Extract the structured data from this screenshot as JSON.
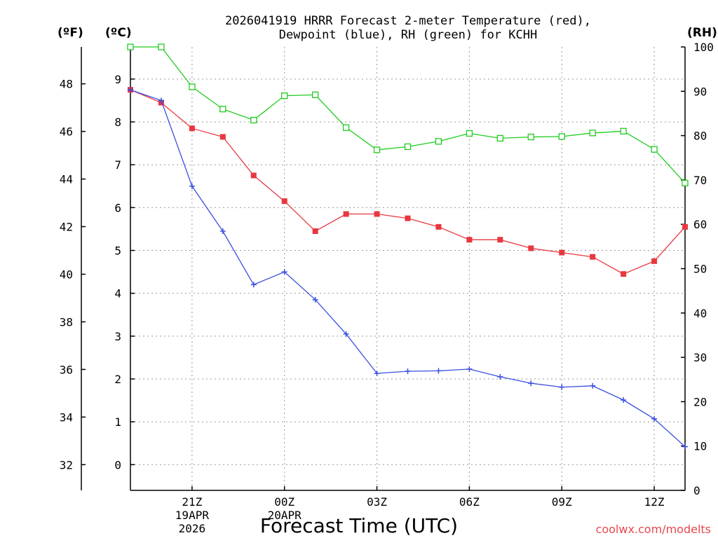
{
  "chart_data": {
    "type": "line",
    "title_line1": "2026041919 HRRR Forecast 2-meter Temperature (red),",
    "title_line2": "Dewpoint (blue), RH (green) for KCHH",
    "xlabel": "Forecast Time (UTC)",
    "credit": "coolwx.com/modelts",
    "units": {
      "fahrenheit": "(ºF)",
      "celsius": "(ºC)",
      "rh": "(RH)"
    },
    "x_hours": [
      0,
      1,
      2,
      3,
      4,
      5,
      6,
      7,
      8,
      9,
      10,
      11,
      12,
      13,
      14,
      15,
      16,
      17,
      18
    ],
    "x_ticks": [
      {
        "hour": 2,
        "label": "21Z",
        "sub1": "19APR",
        "sub2": "2026"
      },
      {
        "hour": 5,
        "label": "00Z",
        "sub1": "20APR",
        "sub2": ""
      },
      {
        "hour": 8,
        "label": "03Z",
        "sub1": "",
        "sub2": ""
      },
      {
        "hour": 11,
        "label": "06Z",
        "sub1": "",
        "sub2": ""
      },
      {
        "hour": 14,
        "label": "09Z",
        "sub1": "",
        "sub2": ""
      },
      {
        "hour": 17,
        "label": "12Z",
        "sub1": "",
        "sub2": ""
      }
    ],
    "celsius_range": [
      -0.6,
      9.75
    ],
    "celsius_ticks": [
      0,
      1,
      2,
      3,
      4,
      5,
      6,
      7,
      8,
      9
    ],
    "fahrenheit_ticks": [
      32,
      34,
      36,
      38,
      40,
      42,
      44,
      46,
      48
    ],
    "rh_range": [
      0,
      100
    ],
    "rh_ticks": [
      0,
      10,
      20,
      30,
      40,
      50,
      60,
      70,
      80,
      90,
      100
    ],
    "series": [
      {
        "name": "Temperature",
        "color": "#e8373f",
        "marker": "filled-square",
        "values": [
          8.75,
          8.45,
          7.85,
          7.65,
          6.75,
          6.15,
          5.45,
          5.85,
          5.85,
          5.75,
          5.55,
          5.25,
          5.25,
          5.05,
          4.95,
          4.85,
          4.45,
          4.75,
          5.55
        ]
      },
      {
        "name": "Dewpoint",
        "color": "#3a4fe0",
        "marker": "plus",
        "values": [
          8.75,
          8.5,
          6.5,
          5.45,
          4.2,
          4.5,
          3.85,
          3.05,
          2.13,
          2.18,
          2.19,
          2.23,
          2.05,
          1.9,
          1.81,
          1.84,
          1.51,
          1.07,
          0.42
        ]
      },
      {
        "name": "RH",
        "color": "#1fcc1f",
        "marker": "open-square",
        "values": [
          100,
          100,
          91,
          86,
          83.5,
          89,
          89.2,
          81.8,
          76.8,
          77.5,
          78.7,
          80.5,
          79.4,
          79.7,
          79.8,
          80.6,
          81,
          76.9,
          69.3
        ]
      }
    ]
  }
}
